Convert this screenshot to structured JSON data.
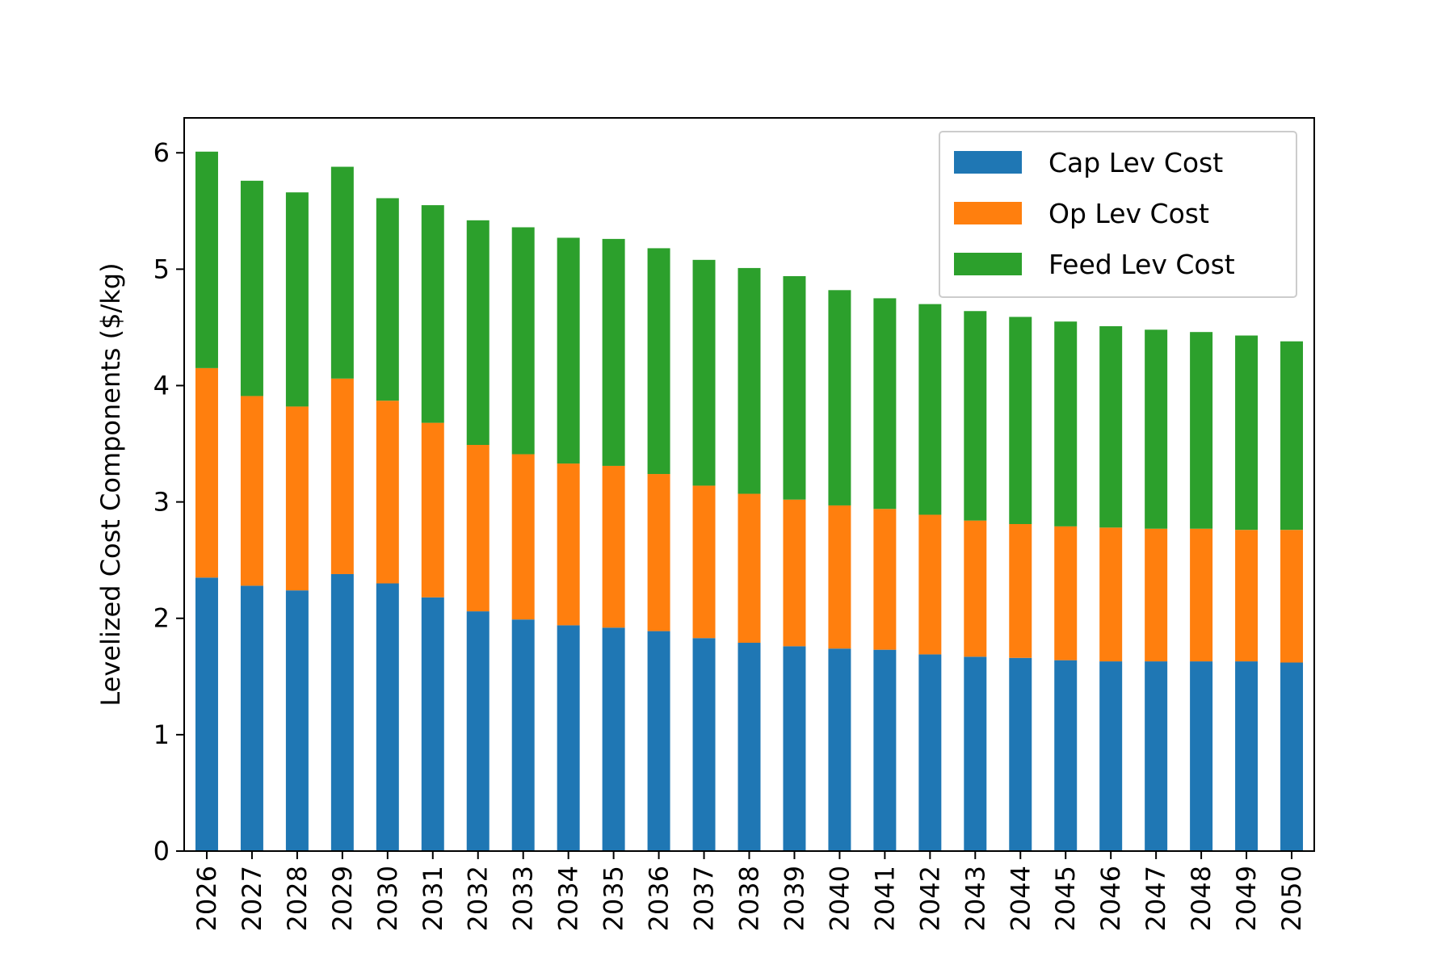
{
  "chart_data": {
    "type": "bar",
    "stacked": true,
    "title": "",
    "xlabel": "",
    "ylabel": "Levelized Cost Components ($/kg)",
    "ylim": [
      0,
      6.3
    ],
    "yticks": [
      0,
      1,
      2,
      3,
      4,
      5,
      6
    ],
    "grid": false,
    "legend_position": "top-right",
    "categories": [
      "2026",
      "2027",
      "2028",
      "2029",
      "2030",
      "2031",
      "2032",
      "2033",
      "2034",
      "2035",
      "2036",
      "2037",
      "2038",
      "2039",
      "2040",
      "2041",
      "2042",
      "2043",
      "2044",
      "2045",
      "2046",
      "2047",
      "2048",
      "2049",
      "2050"
    ],
    "series": [
      {
        "name": "Cap Lev Cost",
        "color": "#1f77b4",
        "values": [
          2.35,
          2.28,
          2.24,
          2.38,
          2.3,
          2.18,
          2.06,
          1.99,
          1.94,
          1.92,
          1.89,
          1.83,
          1.79,
          1.76,
          1.74,
          1.73,
          1.69,
          1.67,
          1.66,
          1.64,
          1.63,
          1.63,
          1.63,
          1.63,
          1.62
        ]
      },
      {
        "name": "Op Lev Cost",
        "color": "#ff7f0e",
        "values": [
          1.8,
          1.63,
          1.58,
          1.68,
          1.57,
          1.5,
          1.43,
          1.42,
          1.39,
          1.39,
          1.35,
          1.31,
          1.28,
          1.26,
          1.23,
          1.21,
          1.2,
          1.17,
          1.15,
          1.15,
          1.15,
          1.14,
          1.14,
          1.13,
          1.14
        ]
      },
      {
        "name": "Feed Lev Cost",
        "color": "#2ca02c",
        "values": [
          1.86,
          1.85,
          1.84,
          1.82,
          1.74,
          1.87,
          1.93,
          1.95,
          1.94,
          1.95,
          1.94,
          1.94,
          1.94,
          1.92,
          1.85,
          1.81,
          1.81,
          1.8,
          1.78,
          1.76,
          1.73,
          1.71,
          1.69,
          1.67,
          1.62
        ]
      }
    ]
  }
}
